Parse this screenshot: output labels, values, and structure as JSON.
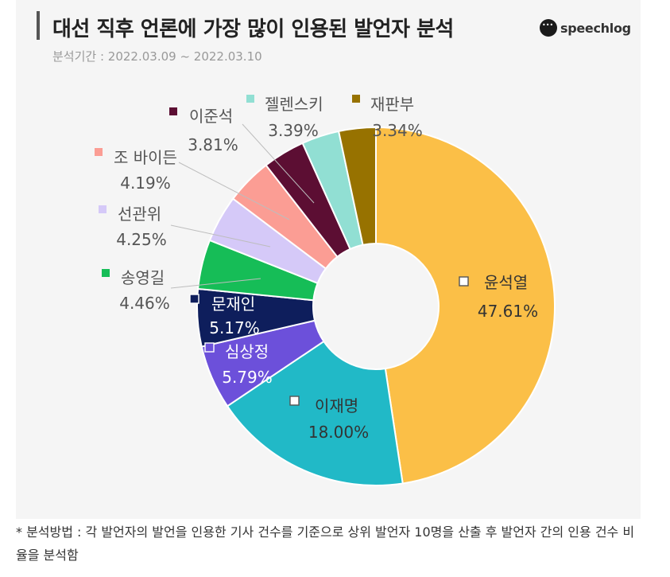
{
  "header": {
    "title": "대선 직후 언론에 가장 많이 인용된 발언자 분석",
    "period": "분석기간 : 2022.03.09 ~ 2022.03.10",
    "logo_text": "speechlog"
  },
  "footnote": "* 분석방법 : 각 발언자의 발언을 인용한 기사 건수를 기준으로 상위 발언자 10명을 산출 후 발언자 간의 인용 건수 비율을 분석함",
  "chart_data": {
    "type": "pie",
    "subtype": "donut",
    "title": "대선 직후 언론에 가장 많이 인용된 발언자 분석",
    "unit": "%",
    "categories": [
      "윤석열",
      "이재명",
      "심상정",
      "문재인",
      "송영길",
      "선관위",
      "조 바이든",
      "이준석",
      "젤렌스키",
      "재판부"
    ],
    "values": [
      47.61,
      18.0,
      5.79,
      5.17,
      4.46,
      4.25,
      4.19,
      3.81,
      3.39,
      3.34
    ],
    "value_labels": [
      "47.61%",
      "18.00%",
      "5.79%",
      "5.17%",
      "4.46%",
      "4.25%",
      "4.19%",
      "3.81%",
      "3.39%",
      "3.34%"
    ],
    "colors": [
      "#FBBF47",
      "#21B9C7",
      "#6C50DA",
      "#0E1E5C",
      "#16BD57",
      "#D5C9F8",
      "#FB9D94",
      "#5C0E33",
      "#91DFD3",
      "#977200"
    ],
    "legend": "labels outside with leader lines for small slices, inside for large slices"
  }
}
